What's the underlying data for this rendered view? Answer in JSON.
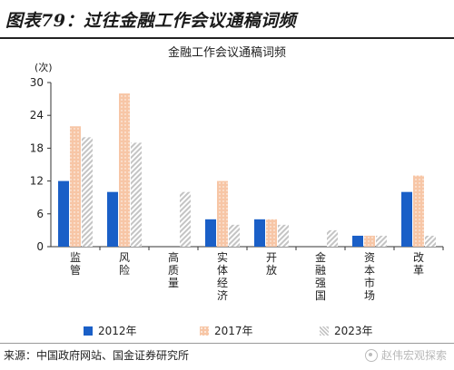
{
  "figure_title": "图表79：过往金融工作会议通稿词频",
  "source": "来源：中国政府网站、国金证券研究所",
  "watermark": "赵伟宏观探索",
  "chart_data": {
    "type": "bar",
    "title": "金融工作会议通稿词频",
    "unit": "(次)",
    "ylim": [
      0,
      30
    ],
    "yticks": [
      0,
      6,
      12,
      18,
      24,
      30
    ],
    "grid": false,
    "legend_position": "bottom",
    "categories": [
      "监管",
      "风险",
      "高质量",
      "实体经济",
      "开放",
      "金融强国",
      "资本市场",
      "改革"
    ],
    "series": [
      {
        "name": "2012年",
        "color": "#1a5fc7",
        "pattern": "solid",
        "values": [
          12,
          10,
          0,
          5,
          5,
          0,
          2,
          10
        ]
      },
      {
        "name": "2017年",
        "color": "#f7c6a6",
        "pattern": "dotted",
        "values": [
          22,
          28,
          0,
          12,
          5,
          0,
          2,
          13
        ]
      },
      {
        "name": "2023年",
        "color": "#c4c4c4",
        "pattern": "hatched",
        "values": [
          20,
          19,
          10,
          4,
          4,
          3,
          2,
          2
        ]
      }
    ]
  }
}
